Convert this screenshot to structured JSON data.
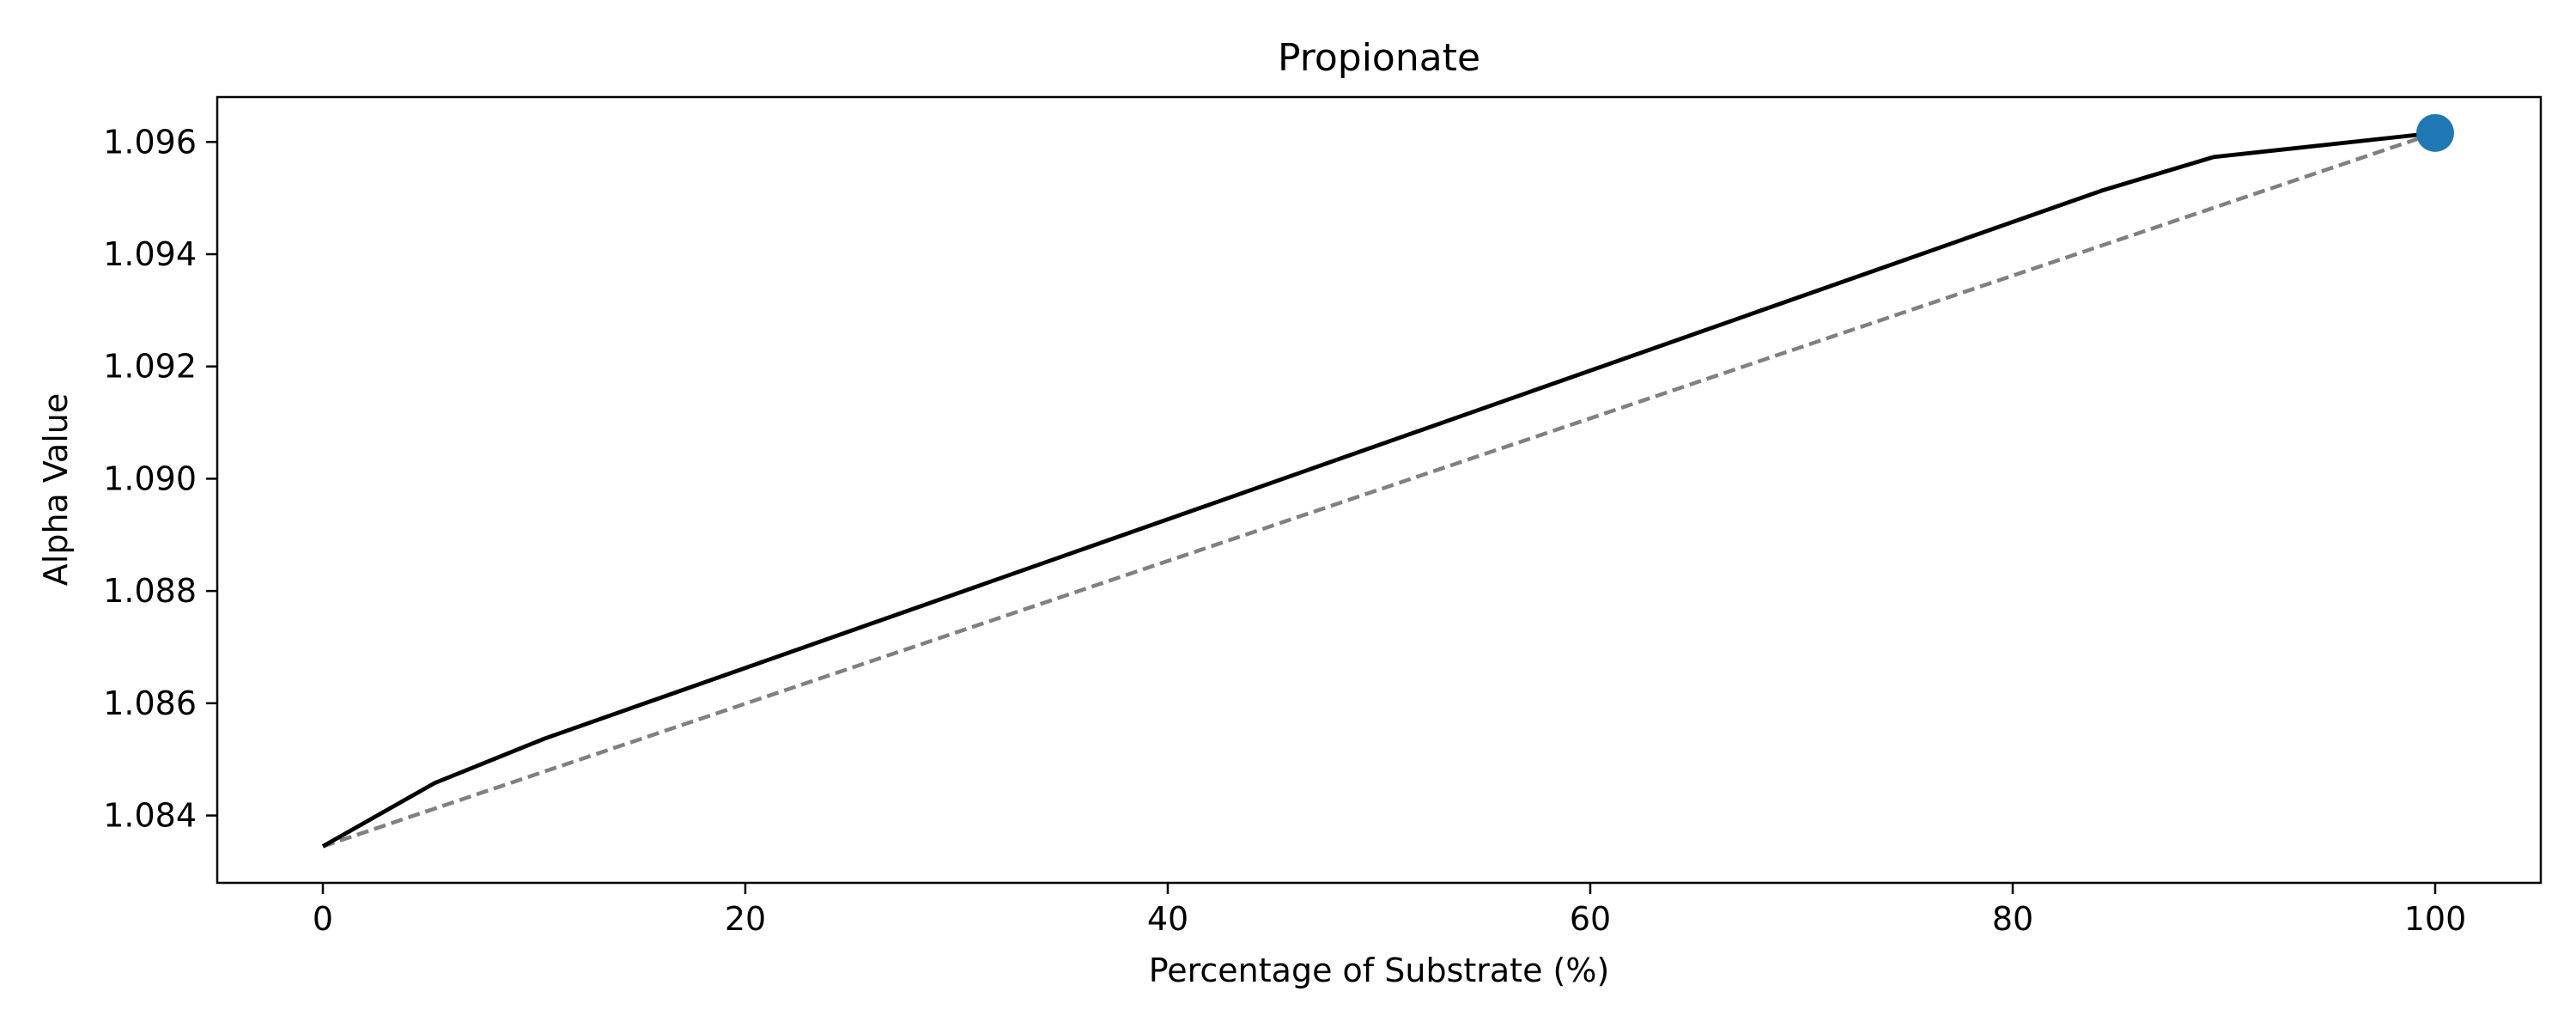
{
  "chart_data": {
    "type": "line",
    "title": "Propionate",
    "xlabel": "Percentage of Substrate (%)",
    "ylabel": "Alpha Value",
    "xlim": [
      -5,
      105
    ],
    "ylim": [
      1.0828,
      1.0968
    ],
    "xticks": [
      0,
      20,
      40,
      60,
      80,
      100
    ],
    "xtick_labels": [
      "0",
      "20",
      "40",
      "60",
      "80",
      "100"
    ],
    "yticks": [
      1.084,
      1.086,
      1.088,
      1.09,
      1.092,
      1.094,
      1.096
    ],
    "ytick_labels": [
      "1.084",
      "1.086",
      "1.088",
      "1.090",
      "1.092",
      "1.094",
      "1.096"
    ],
    "grid": false,
    "series": [
      {
        "style": "solid",
        "color": "#000000",
        "x": [
          0,
          5.3,
          10.5,
          84.2,
          89.5,
          100
        ],
        "y": [
          1.08345,
          1.08458,
          1.08537,
          1.09513,
          1.09573,
          1.09616
        ]
      },
      {
        "style": "dashed",
        "color": "#808080",
        "x": [
          0,
          100
        ],
        "y": [
          1.08345,
          1.09616
        ]
      }
    ],
    "points": [
      {
        "x": 100,
        "y": 1.09616,
        "color": "#1f77b4"
      }
    ]
  }
}
